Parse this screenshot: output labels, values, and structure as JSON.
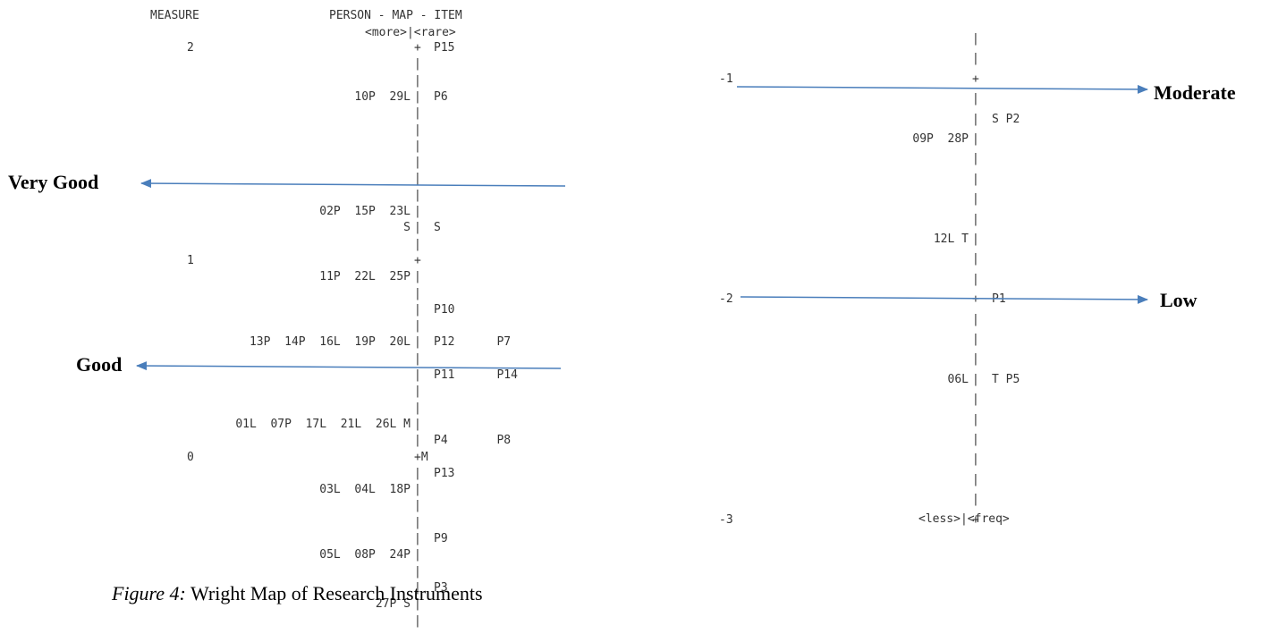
{
  "left_map": {
    "header_measure": "MEASURE",
    "header_title": "PERSON - MAP - ITEM",
    "header_sub": "<more>|<rare>",
    "rows": [
      {
        "measure": "2",
        "persons": "",
        "axis": "+",
        "items": "P15"
      },
      {
        "measure": "",
        "persons": "",
        "axis": "|",
        "items": ""
      },
      {
        "measure": "",
        "persons": "",
        "axis": "|",
        "items": ""
      },
      {
        "measure": "",
        "persons": "10P  29L",
        "axis": "|",
        "items": "P6"
      },
      {
        "measure": "",
        "persons": "",
        "axis": "|",
        "items": ""
      },
      {
        "measure": "",
        "persons": "",
        "axis": "|",
        "items": ""
      },
      {
        "measure": "",
        "persons": "",
        "axis": "|",
        "items": ""
      },
      {
        "measure": "",
        "persons": "",
        "axis": "|",
        "items": ""
      },
      {
        "measure": "",
        "persons": "",
        "axis": "|",
        "items": ""
      },
      {
        "measure": "",
        "persons": "",
        "axis": "|",
        "items": ""
      },
      {
        "measure": "",
        "persons": "02P  15P  23L",
        "axis": "|",
        "items": ""
      },
      {
        "measure": "",
        "persons": "S",
        "axis": "|",
        "items": "S"
      },
      {
        "measure": "",
        "persons": "",
        "axis": "|",
        "items": ""
      },
      {
        "measure": "1",
        "persons": "",
        "axis": "+",
        "items": ""
      },
      {
        "measure": "",
        "persons": "11P  22L  25P",
        "axis": "|",
        "items": ""
      },
      {
        "measure": "",
        "persons": "",
        "axis": "|",
        "items": ""
      },
      {
        "measure": "",
        "persons": "",
        "axis": "|",
        "items": "P10"
      },
      {
        "measure": "",
        "persons": "",
        "axis": "|",
        "items": ""
      },
      {
        "measure": "",
        "persons": "13P  14P  16L  19P  20L",
        "axis": "|",
        "items": "P12      P7"
      },
      {
        "measure": "",
        "persons": "",
        "axis": "|",
        "items": ""
      },
      {
        "measure": "",
        "persons": "",
        "axis": "|",
        "items": "P11      P14"
      },
      {
        "measure": "",
        "persons": "",
        "axis": "|",
        "items": ""
      },
      {
        "measure": "",
        "persons": "",
        "axis": "|",
        "items": ""
      },
      {
        "measure": "",
        "persons": "01L  07P  17L  21L  26L M",
        "axis": "|",
        "items": ""
      },
      {
        "measure": "",
        "persons": "",
        "axis": "|",
        "items": "P4       P8"
      },
      {
        "measure": "0",
        "persons": "",
        "axis": "+M",
        "items": ""
      },
      {
        "measure": "",
        "persons": "",
        "axis": "|",
        "items": "P13"
      },
      {
        "measure": "",
        "persons": "03L  04L  18P",
        "axis": "|",
        "items": ""
      },
      {
        "measure": "",
        "persons": "",
        "axis": "|",
        "items": ""
      },
      {
        "measure": "",
        "persons": "",
        "axis": "|",
        "items": ""
      },
      {
        "measure": "",
        "persons": "",
        "axis": "|",
        "items": "P9"
      },
      {
        "measure": "",
        "persons": "05L  08P  24P",
        "axis": "|",
        "items": ""
      },
      {
        "measure": "",
        "persons": "",
        "axis": "|",
        "items": ""
      },
      {
        "measure": "",
        "persons": "",
        "axis": "|",
        "items": "P3"
      },
      {
        "measure": "",
        "persons": "27P S",
        "axis": "|",
        "items": ""
      },
      {
        "measure": "",
        "persons": "",
        "axis": "|",
        "items": ""
      }
    ]
  },
  "right_map": {
    "rows": [
      {
        "measure": "",
        "persons": "",
        "axis": "|",
        "items": ""
      },
      {
        "measure": "",
        "persons": "",
        "axis": "|",
        "items": ""
      },
      {
        "measure": "-1",
        "persons": "",
        "axis": "+",
        "items": ""
      },
      {
        "measure": "",
        "persons": "",
        "axis": "|",
        "items": ""
      },
      {
        "measure": "",
        "persons": "",
        "axis": "|",
        "items": "S P2"
      },
      {
        "measure": "",
        "persons": "09P  28P",
        "axis": "|",
        "items": ""
      },
      {
        "measure": "",
        "persons": "",
        "axis": "|",
        "items": ""
      },
      {
        "measure": "",
        "persons": "",
        "axis": "|",
        "items": ""
      },
      {
        "measure": "",
        "persons": "",
        "axis": "|",
        "items": ""
      },
      {
        "measure": "",
        "persons": "",
        "axis": "|",
        "items": ""
      },
      {
        "measure": "",
        "persons": "12L T",
        "axis": "|",
        "items": ""
      },
      {
        "measure": "",
        "persons": "",
        "axis": "|",
        "items": ""
      },
      {
        "measure": "",
        "persons": "",
        "axis": "|",
        "items": ""
      },
      {
        "measure": "-2",
        "persons": "",
        "axis": "+",
        "items": "P1"
      },
      {
        "measure": "",
        "persons": "",
        "axis": "|",
        "items": ""
      },
      {
        "measure": "",
        "persons": "",
        "axis": "|",
        "items": ""
      },
      {
        "measure": "",
        "persons": "",
        "axis": "|",
        "items": ""
      },
      {
        "measure": "",
        "persons": "06L",
        "axis": "|",
        "items": "T P5"
      },
      {
        "measure": "",
        "persons": "",
        "axis": "|",
        "items": ""
      },
      {
        "measure": "",
        "persons": "",
        "axis": "|",
        "items": ""
      },
      {
        "measure": "",
        "persons": "",
        "axis": "|",
        "items": ""
      },
      {
        "measure": "",
        "persons": "",
        "axis": "|",
        "items": ""
      },
      {
        "measure": "",
        "persons": "",
        "axis": "|",
        "items": ""
      },
      {
        "measure": "",
        "persons": "",
        "axis": "|",
        "items": ""
      },
      {
        "measure": "-3",
        "persons": "",
        "axis": "+",
        "items": ""
      }
    ],
    "footer": "<less>|<freq>"
  },
  "labels": {
    "very_good": "Very Good",
    "good": "Good",
    "moderate": "Moderate",
    "low": "Low"
  },
  "caption": {
    "prefix": "Figure 4:",
    "text": " Wright Map of Research Instruments"
  },
  "colors": {
    "arrow": "#4a7ebb",
    "text": "#333333"
  }
}
